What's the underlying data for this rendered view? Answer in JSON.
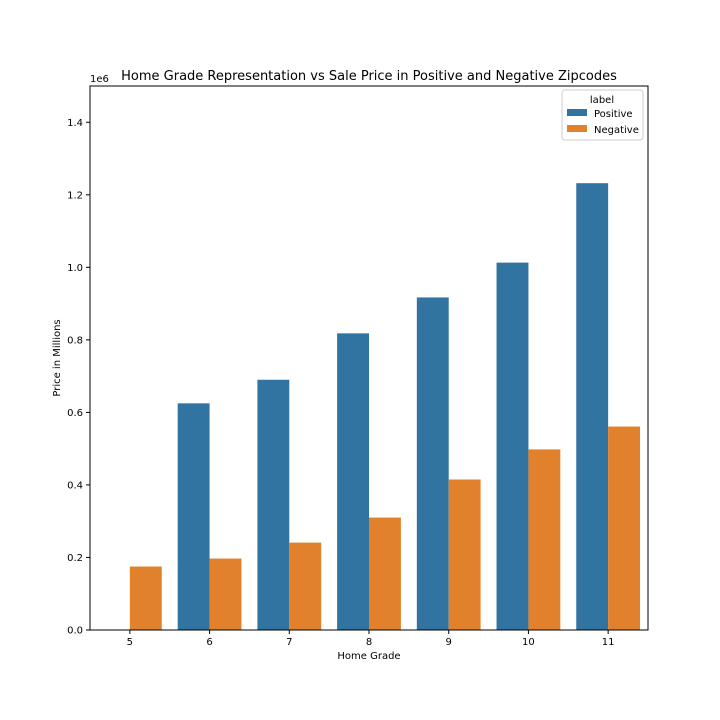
{
  "chart_data": {
    "type": "bar",
    "title": "Home Grade Representation vs Sale Price in Positive and Negative Zipcodes",
    "xlabel": "Home Grade",
    "ylabel": "Price in Millions",
    "y_offset_label": "1e6",
    "categories": [
      "5",
      "6",
      "7",
      "8",
      "9",
      "10",
      "11"
    ],
    "ylim": [
      0,
      1500000
    ],
    "yticks": [
      0,
      200000,
      400000,
      600000,
      800000,
      1000000,
      1200000,
      1400000
    ],
    "ytick_labels": [
      "0.0",
      "0.2",
      "0.4",
      "0.6",
      "0.8",
      "1.0",
      "1.2",
      "1.4"
    ],
    "legend": {
      "title": "label",
      "placement": "top-right"
    },
    "series": [
      {
        "name": "Positive",
        "color": "#3274a1",
        "values": [
          null,
          625000,
          690000,
          818000,
          917000,
          1013000,
          1232000
        ]
      },
      {
        "name": "Negative",
        "color": "#e1812c",
        "values": [
          175000,
          197000,
          241000,
          310000,
          415000,
          498000,
          561000
        ]
      }
    ]
  }
}
